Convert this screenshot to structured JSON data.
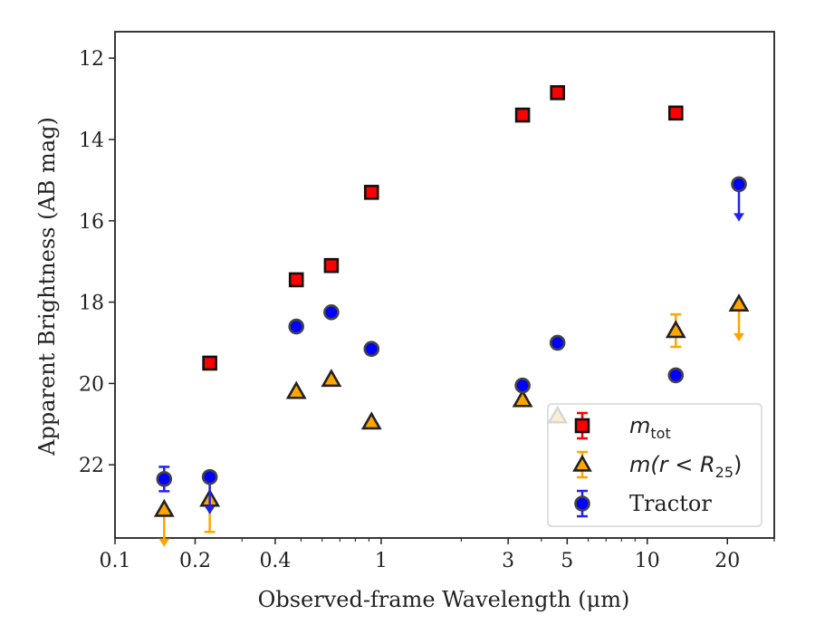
{
  "chart_data": {
    "type": "scatter",
    "xlabel": "Observed-frame Wavelength (μm)",
    "ylabel": "Apparent Brightness (AB mag)",
    "x_scale": "log",
    "xlim": [
      0.1,
      30
    ],
    "ylim": [
      23.8,
      11.35
    ],
    "y_inverted": true,
    "xticks": [
      {
        "value": 0.1,
        "label": "0.1"
      },
      {
        "value": 0.2,
        "label": "0.2"
      },
      {
        "value": 0.4,
        "label": "0.4"
      },
      {
        "value": 1,
        "label": "1"
      },
      {
        "value": 3,
        "label": "3"
      },
      {
        "value": 5,
        "label": "5"
      },
      {
        "value": 10,
        "label": "10"
      },
      {
        "value": 20,
        "label": "20"
      }
    ],
    "yticks": [
      {
        "value": 12,
        "label": "12"
      },
      {
        "value": 14,
        "label": "14"
      },
      {
        "value": 16,
        "label": "16"
      },
      {
        "value": 18,
        "label": "18"
      },
      {
        "value": 20,
        "label": "20"
      },
      {
        "value": 22,
        "label": "22"
      }
    ],
    "grid": false,
    "legend_position": "bottom-right",
    "series": [
      {
        "name": "m_tot",
        "legend_main": "m",
        "legend_sub": "tot",
        "marker": "square",
        "face_color": "#ff0000",
        "edge_color": "#111111",
        "err_color": "#ff0000",
        "points": [
          {
            "x": 0.227,
            "y": 19.5
          },
          {
            "x": 0.48,
            "y": 17.45
          },
          {
            "x": 0.65,
            "y": 17.1
          },
          {
            "x": 0.92,
            "y": 15.3
          },
          {
            "x": 3.4,
            "y": 13.4
          },
          {
            "x": 4.6,
            "y": 12.85
          },
          {
            "x": 12.8,
            "y": 13.35
          }
        ]
      },
      {
        "name": "m(r < R25)",
        "legend_main": "m(r < R",
        "legend_sub": "25",
        "legend_tail": ")",
        "marker": "triangle",
        "face_color": "#ffa500",
        "edge_color": "#222222",
        "err_color": "#ffa500",
        "points": [
          {
            "x": 0.153,
            "y": 23.1,
            "upper_limit": true
          },
          {
            "x": 0.227,
            "y": 22.85,
            "yerr_low": 0.8,
            "yerr_high": 0.5
          },
          {
            "x": 0.48,
            "y": 20.2
          },
          {
            "x": 0.65,
            "y": 19.9
          },
          {
            "x": 0.92,
            "y": 20.95
          },
          {
            "x": 3.4,
            "y": 20.4
          },
          {
            "x": 4.6,
            "y": 20.8
          },
          {
            "x": 12.8,
            "y": 18.7,
            "yerr_low": 0.4,
            "yerr_high": 0.4
          },
          {
            "x": 22.1,
            "y": 18.05,
            "upper_limit": true
          }
        ]
      },
      {
        "name": "Tractor",
        "legend_main": "Tractor",
        "marker": "circle",
        "face_color": "#0000ff",
        "edge_color": "#444444",
        "err_color": "#2222ee",
        "points": [
          {
            "x": 0.153,
            "y": 22.35,
            "yerr_low": 0.3,
            "yerr_high": 0.3
          },
          {
            "x": 0.227,
            "y": 22.3,
            "upper_limit": true
          },
          {
            "x": 0.48,
            "y": 18.6
          },
          {
            "x": 0.65,
            "y": 18.25
          },
          {
            "x": 0.92,
            "y": 19.15
          },
          {
            "x": 3.4,
            "y": 20.05
          },
          {
            "x": 4.6,
            "y": 19.0
          },
          {
            "x": 12.8,
            "y": 19.8
          },
          {
            "x": 22.1,
            "y": 15.1,
            "upper_limit": true
          }
        ]
      }
    ]
  }
}
